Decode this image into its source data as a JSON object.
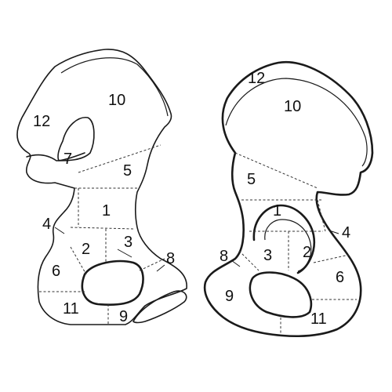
{
  "diagrams": {
    "left": {
      "labels": {
        "r1": "1",
        "r2": "2",
        "r3": "3",
        "r4": "4",
        "r5": "5",
        "r6": "6",
        "r7": "7",
        "r8": "8",
        "r9": "9",
        "r10": "10",
        "r11": "11",
        "r12": "12"
      }
    },
    "right": {
      "labels": {
        "r1": "1",
        "r2": "2",
        "r3": "3",
        "r4": "4",
        "r5": "5",
        "r6": "6",
        "r8": "8",
        "r9": "9",
        "r10": "10",
        "r11": "11",
        "r12": "12"
      }
    }
  }
}
